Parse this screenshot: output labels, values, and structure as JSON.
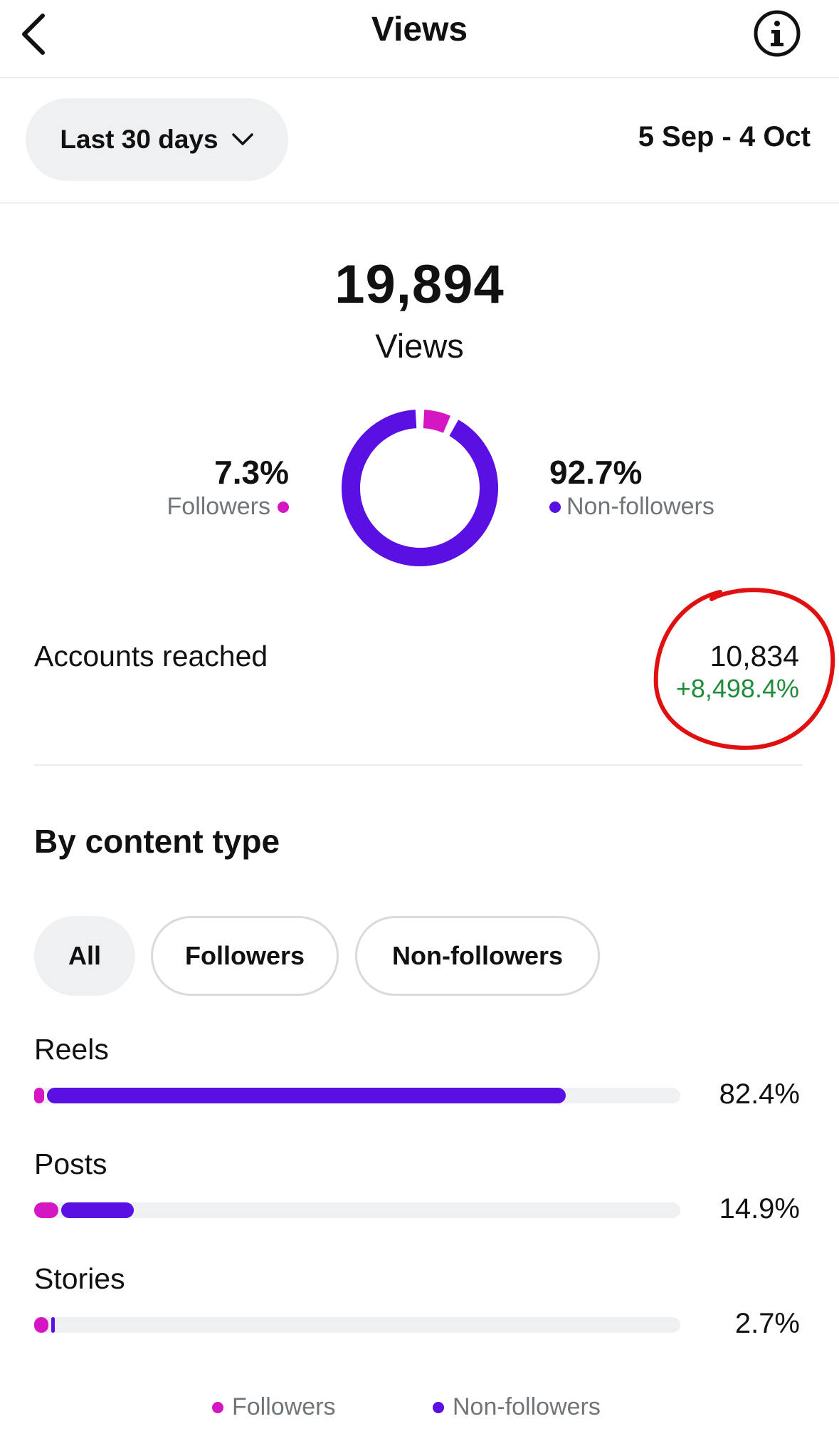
{
  "header": {
    "title": "Views",
    "back_icon": "chevron-left-icon",
    "info_icon": "info-icon"
  },
  "range": {
    "selected": "Last 30 days",
    "dropdown_icon": "chevron-down-icon",
    "dates": "5 Sep - 4 Oct"
  },
  "summary": {
    "total": "19,894",
    "total_label": "Views",
    "followers_pct": "7.3%",
    "followers_label": "Followers",
    "followers_fraction": 0.073,
    "non_followers_pct": "92.7%",
    "non_followers_label": "Non-followers",
    "non_followers_fraction": 0.927
  },
  "colors": {
    "followers": "#d417c2",
    "non_followers": "#5a0fe3",
    "positive": "#1f8c3a",
    "annotation": "#e01010"
  },
  "reach": {
    "label": "Accounts reached",
    "value": "10,834",
    "delta": "+8,498.4%"
  },
  "content_type": {
    "title": "By content type",
    "filters": [
      "All",
      "Followers",
      "Non-followers"
    ],
    "selected_filter": "All",
    "rows": [
      {
        "label": "Reels",
        "pct": "82.4%",
        "value": 82.4
      },
      {
        "label": "Posts",
        "pct": "14.9%",
        "value": 14.9
      },
      {
        "label": "Stories",
        "pct": "2.7%",
        "value": 2.7
      }
    ],
    "legend": [
      "Followers",
      "Non-followers"
    ]
  }
}
